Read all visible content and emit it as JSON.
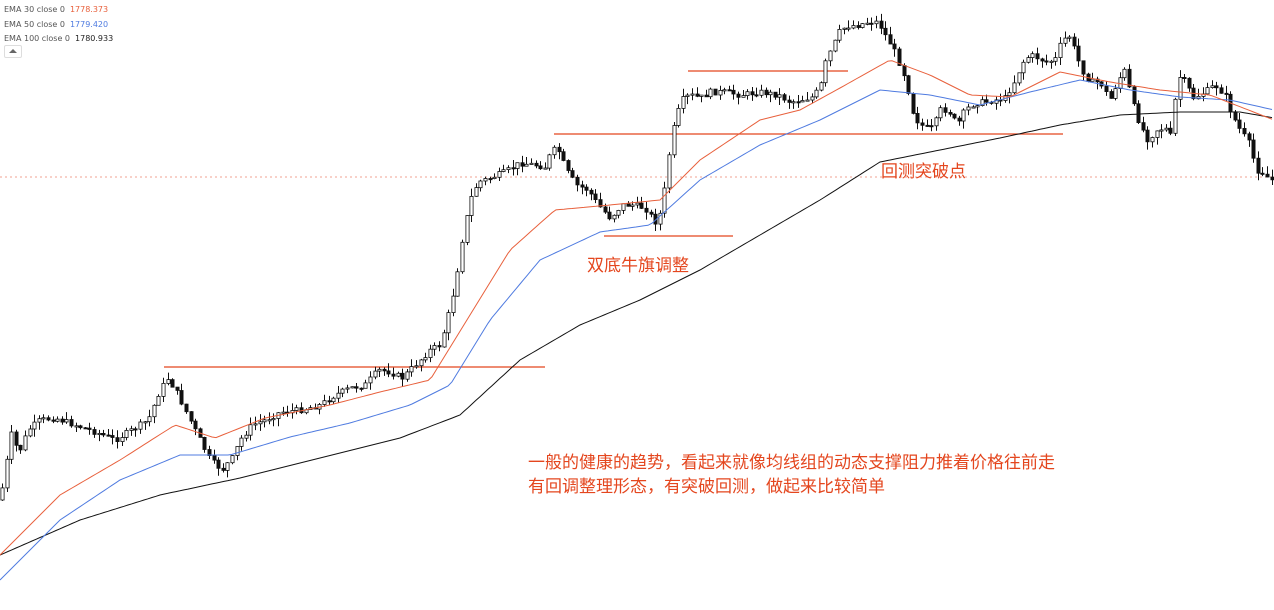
{
  "legend": [
    {
      "label": "EMA 30 close 0",
      "value": "1778.373",
      "color": "#e8603c"
    },
    {
      "label": "EMA 50 close 0",
      "value": "1779.420",
      "color": "#4f7be0"
    },
    {
      "label": "EMA 100 close 0",
      "value": "1780.933",
      "color": "#111111"
    }
  ],
  "annotations": {
    "double_bottom": "双底牛旗调整",
    "retest": "回测突破点",
    "note_line1": "一般的健康的趋势，看起来就像均线组的动态支撑阻力推着价格往前走",
    "note_line2": "有回调整理形态，有突破回测，做起来比较简单"
  },
  "colors": {
    "annotation": "#e4461e",
    "candle": "#111111",
    "ema30": "#e8603c",
    "ema50": "#4f7be0",
    "ema100": "#111111"
  },
  "chart_data": {
    "type": "candlestick",
    "series": [
      {
        "name": "EMA 30 close 0",
        "last": 1778.373
      },
      {
        "name": "EMA 50 close 0",
        "last": 1779.42
      },
      {
        "name": "EMA 100 close 0",
        "last": 1780.933
      }
    ],
    "price_path": [
      [
        0,
        500
      ],
      [
        5,
        470
      ],
      [
        12,
        430
      ],
      [
        18,
        455
      ],
      [
        28,
        430
      ],
      [
        40,
        420
      ],
      [
        55,
        418
      ],
      [
        75,
        425
      ],
      [
        95,
        432
      ],
      [
        115,
        440
      ],
      [
        135,
        428
      ],
      [
        148,
        420
      ],
      [
        160,
        390
      ],
      [
        168,
        378
      ],
      [
        178,
        395
      ],
      [
        190,
        420
      ],
      [
        200,
        440
      ],
      [
        210,
        460
      ],
      [
        222,
        470
      ],
      [
        232,
        458
      ],
      [
        240,
        440
      ],
      [
        252,
        425
      ],
      [
        265,
        420
      ],
      [
        280,
        412
      ],
      [
        300,
        410
      ],
      [
        320,
        405
      ],
      [
        335,
        395
      ],
      [
        350,
        388
      ],
      [
        365,
        385
      ],
      [
        378,
        370
      ],
      [
        390,
        372
      ],
      [
        402,
        378
      ],
      [
        410,
        370
      ],
      [
        420,
        360
      ],
      [
        430,
        350
      ],
      [
        440,
        345
      ],
      [
        447,
        320
      ],
      [
        455,
        285
      ],
      [
        462,
        240
      ],
      [
        470,
        200
      ],
      [
        478,
        182
      ],
      [
        490,
        178
      ],
      [
        505,
        172
      ],
      [
        520,
        163
      ],
      [
        535,
        165
      ],
      [
        545,
        167
      ],
      [
        552,
        150
      ],
      [
        558,
        150
      ],
      [
        566,
        170
      ],
      [
        576,
        185
      ],
      [
        588,
        190
      ],
      [
        598,
        205
      ],
      [
        610,
        218
      ],
      [
        622,
        205
      ],
      [
        633,
        205
      ],
      [
        645,
        208
      ],
      [
        655,
        222
      ],
      [
        662,
        210
      ],
      [
        668,
        160
      ],
      [
        675,
        120
      ],
      [
        682,
        100
      ],
      [
        690,
        95
      ],
      [
        700,
        98
      ],
      [
        710,
        92
      ],
      [
        725,
        92
      ],
      [
        740,
        95
      ],
      [
        760,
        92
      ],
      [
        778,
        95
      ],
      [
        790,
        102
      ],
      [
        800,
        100
      ],
      [
        812,
        97
      ],
      [
        820,
        88
      ],
      [
        826,
        60
      ],
      [
        832,
        48
      ],
      [
        840,
        30
      ],
      [
        848,
        26
      ],
      [
        858,
        25
      ],
      [
        868,
        22
      ],
      [
        878,
        22
      ],
      [
        885,
        35
      ],
      [
        893,
        48
      ],
      [
        900,
        65
      ],
      [
        906,
        80
      ],
      [
        912,
        110
      ],
      [
        918,
        122
      ],
      [
        925,
        128
      ],
      [
        933,
        128
      ],
      [
        940,
        110
      ],
      [
        948,
        110
      ],
      [
        957,
        125
      ],
      [
        965,
        110
      ],
      [
        975,
        103
      ],
      [
        985,
        102
      ],
      [
        995,
        100
      ],
      [
        1005,
        98
      ],
      [
        1015,
        80
      ],
      [
        1022,
        63
      ],
      [
        1030,
        55
      ],
      [
        1038,
        58
      ],
      [
        1046,
        62
      ],
      [
        1055,
        60
      ],
      [
        1062,
        40
      ],
      [
        1070,
        36
      ],
      [
        1076,
        55
      ],
      [
        1082,
        70
      ],
      [
        1090,
        82
      ],
      [
        1100,
        82
      ],
      [
        1110,
        100
      ],
      [
        1118,
        80
      ],
      [
        1125,
        70
      ],
      [
        1132,
        102
      ],
      [
        1140,
        125
      ],
      [
        1148,
        140
      ],
      [
        1156,
        130
      ],
      [
        1165,
        128
      ],
      [
        1172,
        138
      ],
      [
        1177,
        75
      ],
      [
        1185,
        82
      ],
      [
        1193,
        98
      ],
      [
        1205,
        92
      ],
      [
        1215,
        85
      ],
      [
        1225,
        95
      ],
      [
        1232,
        115
      ],
      [
        1240,
        130
      ],
      [
        1250,
        145
      ],
      [
        1256,
        170
      ],
      [
        1262,
        172
      ],
      [
        1270,
        180
      ]
    ],
    "ema30": [
      [
        0,
        555
      ],
      [
        60,
        495
      ],
      [
        120,
        460
      ],
      [
        175,
        425
      ],
      [
        215,
        438
      ],
      [
        265,
        418
      ],
      [
        330,
        405
      ],
      [
        380,
        392
      ],
      [
        430,
        380
      ],
      [
        470,
        315
      ],
      [
        510,
        250
      ],
      [
        555,
        210
      ],
      [
        610,
        205
      ],
      [
        660,
        200
      ],
      [
        700,
        160
      ],
      [
        760,
        120
      ],
      [
        800,
        110
      ],
      [
        840,
        88
      ],
      [
        890,
        60
      ],
      [
        930,
        75
      ],
      [
        970,
        95
      ],
      [
        1010,
        97
      ],
      [
        1060,
        72
      ],
      [
        1110,
        82
      ],
      [
        1160,
        90
      ],
      [
        1210,
        95
      ],
      [
        1274,
        120
      ]
    ],
    "ema50": [
      [
        0,
        580
      ],
      [
        60,
        520
      ],
      [
        120,
        480
      ],
      [
        180,
        455
      ],
      [
        230,
        455
      ],
      [
        290,
        437
      ],
      [
        350,
        423
      ],
      [
        410,
        405
      ],
      [
        450,
        385
      ],
      [
        490,
        320
      ],
      [
        540,
        260
      ],
      [
        600,
        232
      ],
      [
        650,
        225
      ],
      [
        700,
        180
      ],
      [
        760,
        145
      ],
      [
        820,
        120
      ],
      [
        880,
        90
      ],
      [
        930,
        95
      ],
      [
        980,
        105
      ],
      [
        1030,
        92
      ],
      [
        1080,
        80
      ],
      [
        1130,
        90
      ],
      [
        1180,
        97
      ],
      [
        1230,
        100
      ],
      [
        1274,
        110
      ]
    ],
    "ema100": [
      [
        0,
        555
      ],
      [
        80,
        520
      ],
      [
        160,
        495
      ],
      [
        240,
        478
      ],
      [
        320,
        458
      ],
      [
        400,
        438
      ],
      [
        460,
        415
      ],
      [
        520,
        360
      ],
      [
        580,
        325
      ],
      [
        640,
        300
      ],
      [
        700,
        270
      ],
      [
        760,
        235
      ],
      [
        820,
        200
      ],
      [
        880,
        162
      ],
      [
        940,
        150
      ],
      [
        1000,
        138
      ],
      [
        1060,
        125
      ],
      [
        1120,
        115
      ],
      [
        1180,
        112
      ],
      [
        1240,
        112
      ],
      [
        1274,
        118
      ]
    ],
    "support_resistance": [
      {
        "x1": 164,
        "x2": 545,
        "y": 367
      },
      {
        "x1": 554,
        "x2": 1063,
        "y": 134
      },
      {
        "x1": 688,
        "x2": 848,
        "y": 71
      },
      {
        "x1": 604,
        "x2": 733,
        "y": 236
      },
      {
        "x1": 0,
        "x2": 1274,
        "y": 177,
        "dashed": true
      }
    ]
  }
}
